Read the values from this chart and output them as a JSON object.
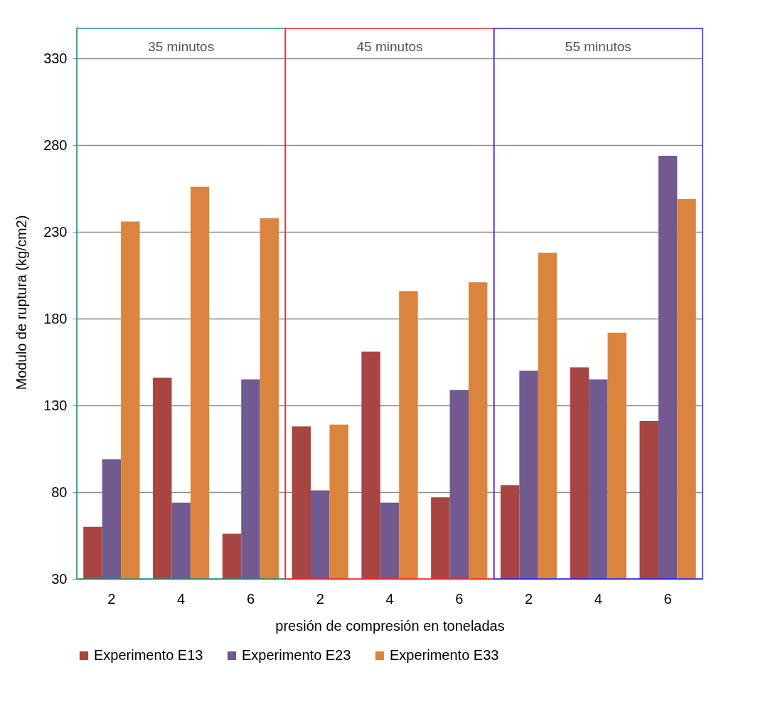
{
  "chart_data": {
    "type": "bar",
    "xlabel": "presión de compresión en toneladas",
    "ylabel": "Modulo de ruptura (kg/cm2)",
    "categories": [
      "2",
      "4",
      "6",
      "2",
      "4",
      "6",
      "2",
      "4",
      "6"
    ],
    "series": [
      {
        "name": "Experimento E13",
        "color": "#a84542",
        "values": [
          60,
          146,
          56,
          118,
          161,
          77,
          84,
          152,
          121
        ]
      },
      {
        "name": "Experimento E23",
        "color": "#725990",
        "values": [
          99,
          74,
          145,
          81,
          74,
          139,
          150,
          145,
          274
        ]
      },
      {
        "name": "Experimento E33",
        "color": "#db843d",
        "values": [
          236,
          256,
          238,
          119,
          196,
          201,
          218,
          172,
          249
        ]
      }
    ],
    "ylim": [
      30,
      349
    ],
    "yticks": [
      30,
      80,
      130,
      180,
      230,
      280,
      330
    ],
    "grid": "y",
    "legend": "bottom",
    "annotations": [
      "35 minutos",
      "45 minutos",
      "55 minutos"
    ]
  }
}
